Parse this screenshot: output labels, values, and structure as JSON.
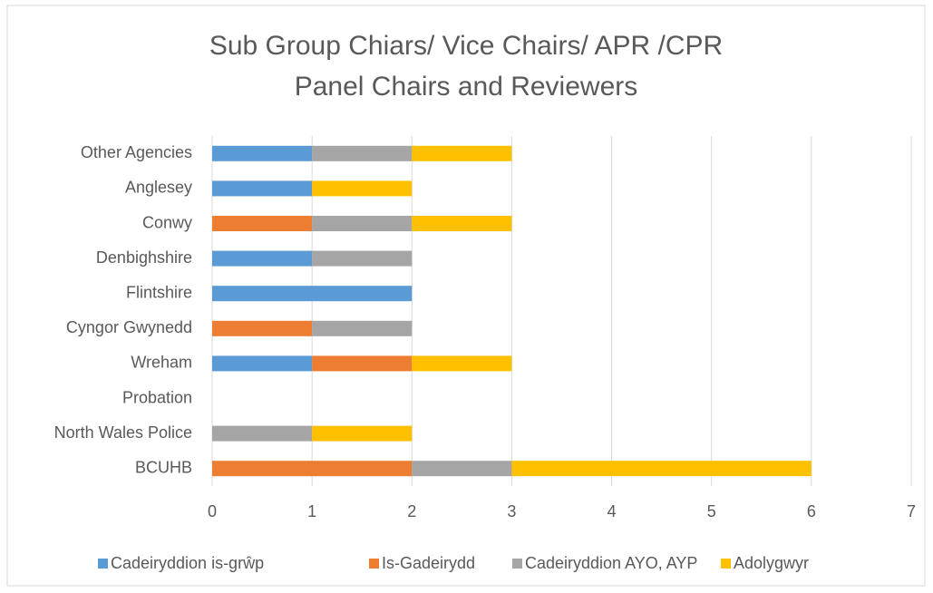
{
  "chart_data": {
    "type": "stacked-bar-horizontal",
    "title": "Sub Group Chiars/ Vice Chairs/ APR /CPR Panel Chairs and Reviewers",
    "categories": [
      "BCUHB",
      "North Wales Police",
      "Probation",
      "Wreham",
      "Cyngor Gwynedd",
      "Flintshire",
      "Denbighshire",
      "Conwy",
      "Anglesey",
      "Other Agencies"
    ],
    "series": [
      {
        "name": "Cadeiryddion is-grŵp",
        "color": "#5b9bd5",
        "values": [
          0,
          0,
          0,
          1,
          0,
          2,
          1,
          0,
          1,
          1
        ]
      },
      {
        "name": "Is-Gadeirydd",
        "color": "#ed7d31",
        "values": [
          2,
          0,
          0,
          1,
          1,
          0,
          0,
          1,
          0,
          0
        ]
      },
      {
        "name": "Cadeiryddion AYO, AYP",
        "color": "#a5a5a5",
        "values": [
          1,
          1,
          0,
          0,
          1,
          0,
          1,
          1,
          0,
          1
        ]
      },
      {
        "name": "Adolygwyr",
        "color": "#ffc000",
        "values": [
          3,
          1,
          0,
          1,
          0,
          0,
          0,
          1,
          1,
          1
        ]
      }
    ],
    "xlim": [
      0,
      7
    ],
    "xticks": [
      0,
      1,
      2,
      3,
      4,
      5,
      6,
      7
    ],
    "grid": true,
    "legend": "bottom"
  }
}
